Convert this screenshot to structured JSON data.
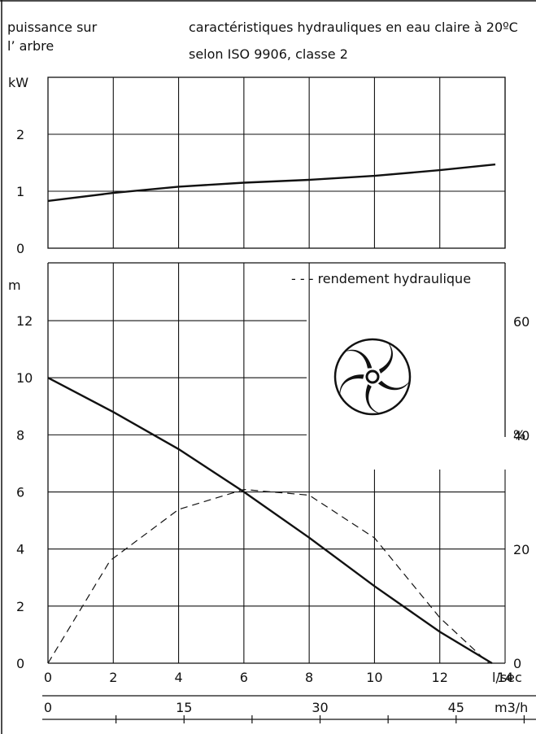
{
  "header": {
    "left_line1": "puissance sur",
    "left_line2": "l’ arbre",
    "right_line1": "caractéristiques hydrauliques en eau claire à 20ºC",
    "right_line2": "selon ISO 9906, classe 2"
  },
  "chart_data": [
    {
      "type": "line",
      "name": "power",
      "ylabel": "kW",
      "ylim": [
        0,
        3
      ],
      "yticks": [
        "0",
        "1",
        "2"
      ],
      "xlim": [
        0,
        14
      ],
      "series": [
        {
          "name": "",
          "x": [
            0,
            2,
            4,
            6,
            8,
            10,
            12,
            13.7
          ],
          "y": [
            0.83,
            0.97,
            1.08,
            1.15,
            1.2,
            1.27,
            1.37,
            1.47
          ]
        }
      ]
    },
    {
      "type": "line",
      "name": "head-efficiency",
      "ylabel": "m",
      "ylim": [
        0,
        13
      ],
      "yticks": [
        "0",
        "2",
        "4",
        "6",
        "8",
        "10",
        "12"
      ],
      "y2label": "%",
      "y2ticks": [
        "0",
        "20",
        "40",
        "60"
      ],
      "xlim": [
        0,
        14
      ],
      "legend": "- - - rendement hydraulique",
      "series": [
        {
          "name": "",
          "style": "solid",
          "x": [
            0,
            2,
            4,
            6,
            8,
            10,
            12,
            13.6
          ],
          "y": [
            10,
            8.8,
            7.5,
            6,
            4.4,
            2.7,
            1.1,
            0
          ]
        },
        {
          "name": "rendement hydraulique",
          "style": "dashed",
          "x": [
            0,
            1.9,
            4,
            6,
            8,
            10,
            12,
            13.5
          ],
          "y": [
            0,
            18,
            27,
            30.5,
            29.5,
            22,
            8,
            0
          ]
        }
      ]
    }
  ],
  "x_axis_lps": {
    "unit": "l/sec",
    "ticks": [
      "0",
      "2",
      "4",
      "6",
      "8",
      "10",
      "12",
      "14"
    ]
  },
  "x_axis_m3h": {
    "unit": "m3/h",
    "ticks": [
      "0",
      "15",
      "30",
      "45"
    ],
    "values": [
      0,
      15,
      30,
      45
    ]
  }
}
